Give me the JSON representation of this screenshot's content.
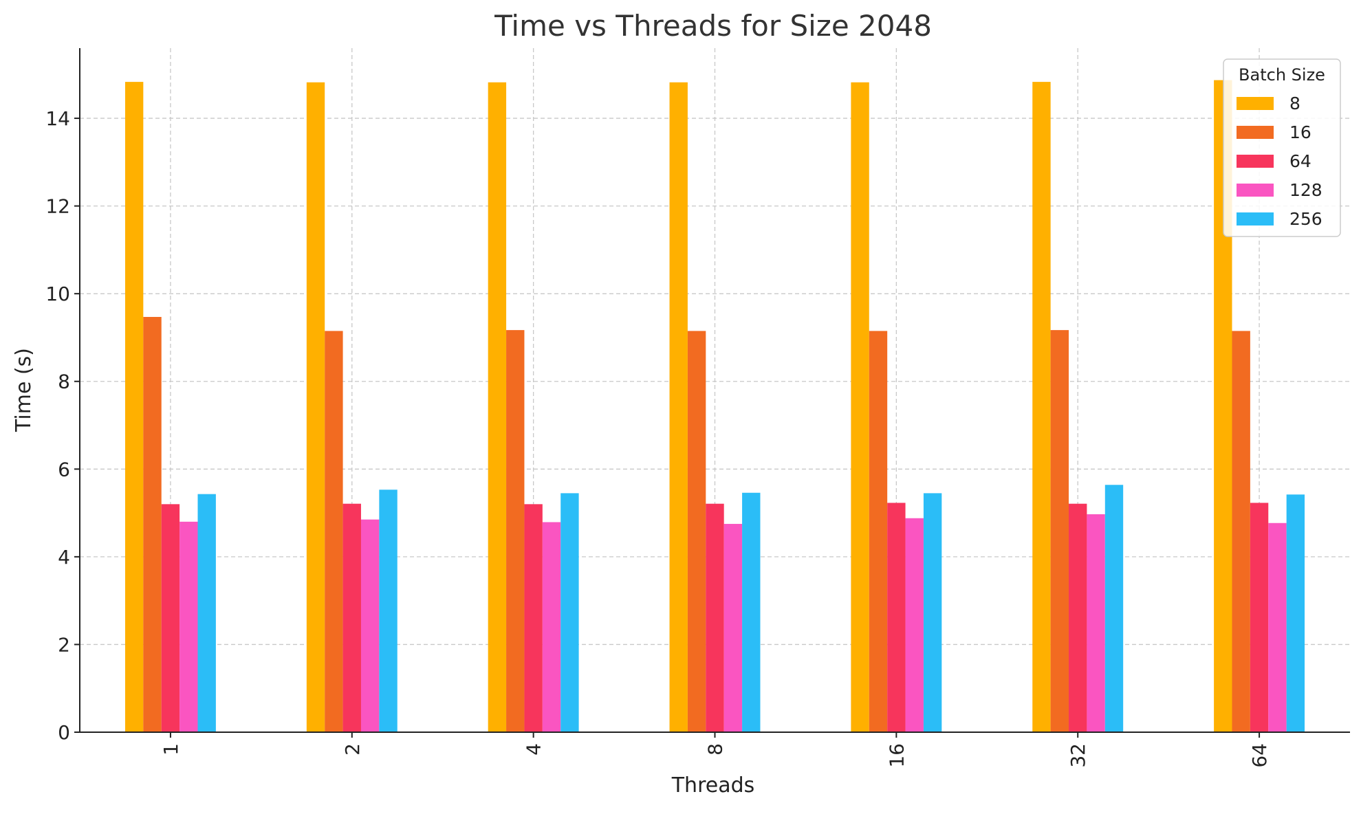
{
  "chart_data": {
    "type": "bar",
    "title": "Time vs Threads for Size 2048",
    "xlabel": "Threads",
    "ylabel": "Time (s)",
    "categories": [
      "1",
      "2",
      "4",
      "8",
      "16",
      "32",
      "64"
    ],
    "ylim": [
      0,
      15.6
    ],
    "yticks": [
      0,
      2,
      4,
      6,
      8,
      10,
      12,
      14
    ],
    "grid": true,
    "legend": {
      "title": "Batch Size",
      "placement": "top-right"
    },
    "series": [
      {
        "name": "8",
        "color": "#FFB000",
        "values": [
          14.83,
          14.82,
          14.82,
          14.82,
          14.82,
          14.83,
          14.87
        ]
      },
      {
        "name": "16",
        "color": "#F26B21",
        "values": [
          9.47,
          9.15,
          9.17,
          9.15,
          9.15,
          9.17,
          9.15
        ]
      },
      {
        "name": "64",
        "color": "#F7355C",
        "values": [
          5.2,
          5.21,
          5.2,
          5.21,
          5.23,
          5.21,
          5.23
        ]
      },
      {
        "name": "128",
        "color": "#FA55C1",
        "values": [
          4.8,
          4.85,
          4.79,
          4.75,
          4.88,
          4.97,
          4.77
        ]
      },
      {
        "name": "256",
        "color": "#2BBDF7",
        "values": [
          5.43,
          5.53,
          5.45,
          5.46,
          5.45,
          5.64,
          5.42
        ]
      }
    ]
  }
}
